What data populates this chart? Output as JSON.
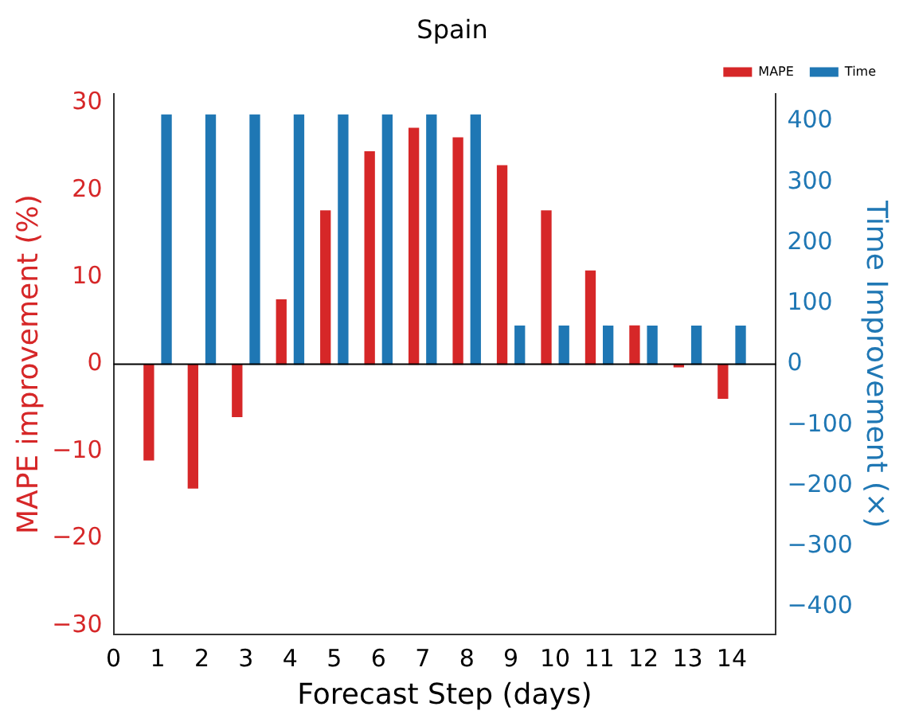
{
  "chart_data": {
    "type": "bar",
    "title": "Spain",
    "xlabel": "Forecast Step (days)",
    "ylabel": "MAPE improvement (%)",
    "y2label": "Time Improvement (×)",
    "xlim": [
      0,
      15
    ],
    "xticks": [
      0,
      1,
      2,
      3,
      4,
      5,
      6,
      7,
      8,
      9,
      10,
      11,
      12,
      13,
      14
    ],
    "ylim": [
      -31,
      31
    ],
    "yticks": [
      -30,
      -20,
      -10,
      0,
      10,
      20,
      30
    ],
    "y2lim": [
      -445,
      445
    ],
    "y2ticks": [
      -400,
      -300,
      -200,
      -100,
      0,
      100,
      200,
      300,
      400
    ],
    "series": [
      {
        "name": "MAPE",
        "color": "#d62728",
        "x": [
          0.8,
          1.8,
          2.8,
          3.8,
          4.8,
          5.8,
          6.8,
          7.8,
          8.8,
          9.8,
          10.8,
          11.8,
          12.8,
          13.8
        ],
        "values": [
          -11,
          -14.2,
          -6,
          7.4,
          17.6,
          24.4,
          27.1,
          26,
          22.8,
          17.6,
          10.7,
          4.4,
          -0.3,
          -3.9
        ]
      },
      {
        "name": "Time",
        "color": "#1f77b4",
        "axis": "y2",
        "x": [
          1.2,
          2.2,
          3.2,
          4.2,
          5.2,
          6.2,
          7.2,
          8.2,
          9.2,
          10.2,
          11.2,
          12.2,
          13.2,
          14.2
        ],
        "values": [
          411,
          411,
          411,
          411,
          411,
          411,
          411,
          411,
          63,
          63,
          63,
          63,
          63,
          63
        ]
      }
    ],
    "ref_lines": [
      {
        "axis": "y",
        "value": 0,
        "color": "#000000"
      }
    ],
    "grid": false,
    "legend": "top right"
  }
}
